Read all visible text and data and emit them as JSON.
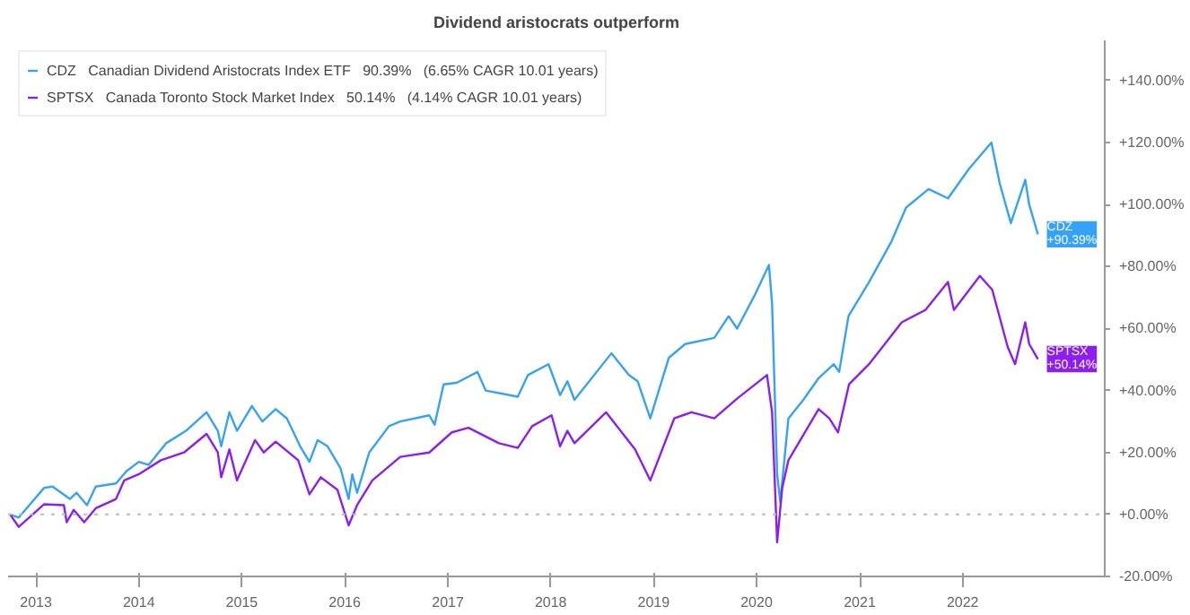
{
  "chart_data": {
    "type": "line",
    "title": "Dividend aristocrats outperform",
    "xlim": [
      "2012-09-24",
      "2023-05-20"
    ],
    "ylim": [
      -20,
      153
    ],
    "xticks": [
      {
        "value": "2013-01-01",
        "label": "2013"
      },
      {
        "value": "2014-01-01",
        "label": "2014"
      },
      {
        "value": "2015-01-01",
        "label": "2015"
      },
      {
        "value": "2016-01-01",
        "label": "2016"
      },
      {
        "value": "2017-01-01",
        "label": "2017"
      },
      {
        "value": "2018-01-01",
        "label": "2018"
      },
      {
        "value": "2019-01-01",
        "label": "2019"
      },
      {
        "value": "2020-01-01",
        "label": "2020"
      },
      {
        "value": "2021-01-01",
        "label": "2021"
      },
      {
        "value": "2022-01-01",
        "label": "2022"
      }
    ],
    "yticks": [
      {
        "value": -20,
        "label": "-20.00%"
      },
      {
        "value": 0,
        "label": "+0.00%"
      },
      {
        "value": 20,
        "label": "+20.00%"
      },
      {
        "value": 40,
        "label": "+40.00%"
      },
      {
        "value": 60,
        "label": "+60.00%"
      },
      {
        "value": 80,
        "label": "+80.00%"
      },
      {
        "value": 100,
        "label": "+100.00%"
      },
      {
        "value": 120,
        "label": "+120.00%"
      },
      {
        "value": 140,
        "label": "+140.00%"
      }
    ],
    "grid": false,
    "legend": "top left",
    "line_style": "solid",
    "ref_lines": [
      {
        "axis": "y",
        "value": 0,
        "color": "#bbbbbb",
        "line_style": "dotted"
      }
    ],
    "annotations": [
      {
        "text": "CDZ\n+90.39%",
        "x": "2022-09-25",
        "y": 90.39
      },
      {
        "text": "SPTSX\n+50.14%",
        "x": "2022-09-25",
        "y": 50.14
      }
    ],
    "series": [
      {
        "name": "CDZ   Canadian Dividend Aristocrats Index ETF   90.39%   (6.65% CAGR 10.01 years)",
        "color": "#36a2f5",
        "x": [
          "2012-10-01",
          "2012-11-01",
          "2013-01-30",
          "2013-03-01",
          "2013-05-01",
          "2013-05-25",
          "2013-07-01",
          "2013-08-01",
          "2013-10-12",
          "2013-11-18",
          "2014-01-01",
          "2014-02-05",
          "2014-04-08",
          "2014-06-17",
          "2014-08-29",
          "2014-10-08",
          "2014-10-20",
          "2014-11-18",
          "2014-12-15",
          "2015-02-06",
          "2015-03-15",
          "2015-05-01",
          "2015-06-10",
          "2015-07-27",
          "2015-08-29",
          "2015-09-27",
          "2015-11-01",
          "2015-12-17",
          "2016-01-15",
          "2016-01-28",
          "2016-02-14",
          "2016-03-28",
          "2016-06-06",
          "2016-07-16",
          "2016-10-27",
          "2016-11-15",
          "2016-12-17",
          "2017-02-01",
          "2017-04-16",
          "2017-05-15",
          "2017-09-06",
          "2017-10-12",
          "2017-12-24",
          "2018-02-03",
          "2018-03-01",
          "2018-03-26",
          "2018-08-04",
          "2018-10-05",
          "2018-11-05",
          "2018-12-20",
          "2019-02-24",
          "2019-04-23",
          "2019-08-04",
          "2019-09-24",
          "2019-10-24",
          "2019-12-24",
          "2020-02-14",
          "2020-02-25",
          "2020-03-14",
          "2020-03-25",
          "2020-04-23",
          "2020-06-15",
          "2020-08-08",
          "2020-10-01",
          "2020-10-20",
          "2020-11-22",
          "2021-02-03",
          "2021-04-23",
          "2021-06-14",
          "2021-09-02",
          "2021-11-10",
          "2022-01-23",
          "2022-04-13",
          "2022-05-12",
          "2022-06-21",
          "2022-08-11",
          "2022-08-25",
          "2022-09-25"
        ],
        "values": [
          0,
          -1,
          8.6,
          9,
          5,
          7,
          3,
          9,
          10,
          14,
          17,
          16,
          23,
          27,
          33,
          27,
          22,
          33,
          27,
          35,
          30,
          34,
          31,
          22,
          17,
          24,
          22,
          15,
          5,
          13,
          7,
          20,
          28.5,
          30,
          32,
          29,
          42,
          42.5,
          46,
          40,
          38,
          45,
          48.5,
          38.5,
          43,
          37,
          52,
          45,
          43,
          31,
          50.6,
          55,
          57,
          64,
          60,
          70.5,
          80.5,
          68,
          13,
          4,
          31,
          37,
          44,
          48.5,
          46,
          64,
          75,
          88,
          99,
          105,
          102,
          111.5,
          120,
          107,
          94,
          108,
          100,
          90.39
        ]
      },
      {
        "name": "SPTSX   Canada Toronto Stock Market Index   50.14%   (4.14% CAGR 10.01 years)",
        "color": "#8c1ff0",
        "x": [
          "2012-10-01",
          "2012-11-01",
          "2013-01-30",
          "2013-04-10",
          "2013-04-20",
          "2013-05-15",
          "2013-06-21",
          "2013-08-01",
          "2013-10-12",
          "2013-11-10",
          "2014-01-01",
          "2014-03-20",
          "2014-06-10",
          "2014-08-29",
          "2014-10-08",
          "2014-10-20",
          "2014-11-18",
          "2014-12-15",
          "2015-02-17",
          "2015-03-20",
          "2015-05-01",
          "2015-07-20",
          "2015-08-29",
          "2015-10-08",
          "2015-12-06",
          "2016-01-15",
          "2016-02-14",
          "2016-04-08",
          "2016-07-16",
          "2016-10-27",
          "2017-01-15",
          "2017-03-15",
          "2017-07-01",
          "2017-09-06",
          "2017-10-27",
          "2018-01-04",
          "2018-02-03",
          "2018-03-01",
          "2018-03-26",
          "2018-07-16",
          "2018-10-27",
          "2018-12-20",
          "2019-03-15",
          "2019-05-15",
          "2019-08-04",
          "2019-10-24",
          "2020-02-07",
          "2020-02-25",
          "2020-03-14",
          "2020-04-01",
          "2020-04-23",
          "2020-08-08",
          "2020-09-15",
          "2020-10-16",
          "2020-11-24",
          "2021-02-03",
          "2021-05-30",
          "2021-08-22",
          "2021-11-10",
          "2021-12-01",
          "2022-03-03",
          "2022-04-16",
          "2022-06-10",
          "2022-07-06",
          "2022-08-11",
          "2022-08-25",
          "2022-09-25"
        ],
        "values": [
          0,
          -4,
          3.3,
          3,
          -2.5,
          1.5,
          -2.5,
          2,
          5,
          11,
          13,
          17.5,
          20,
          26,
          20,
          12,
          21,
          11,
          24,
          20,
          23.5,
          17.5,
          6.5,
          12,
          8,
          -3.5,
          3,
          11,
          18.6,
          20,
          26.5,
          28,
          23,
          21.5,
          28.5,
          32,
          22,
          27,
          23,
          33,
          21,
          11,
          31,
          33,
          31,
          37.4,
          45,
          33,
          -9,
          8.6,
          17.5,
          34,
          31,
          26.5,
          42,
          48.5,
          62,
          66,
          75,
          66,
          77,
          72.5,
          54,
          48.5,
          62,
          55,
          50.14
        ]
      }
    ]
  }
}
